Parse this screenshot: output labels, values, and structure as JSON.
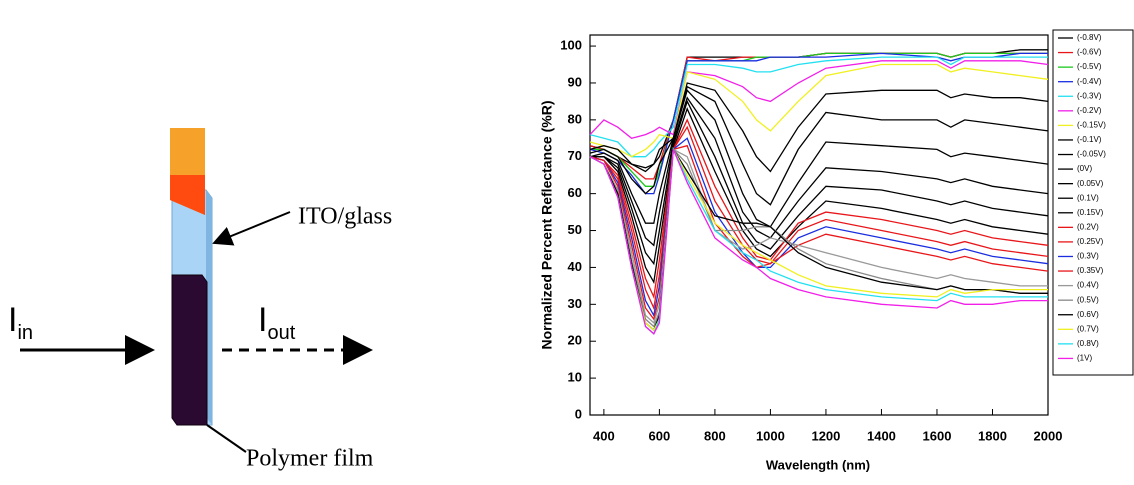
{
  "diagram": {
    "input": {
      "symbol": "I",
      "subscript": "in"
    },
    "output": {
      "symbol": "I",
      "subscript": "out"
    },
    "ito_label": "ITO/glass",
    "polymer_label": "Polymer film"
  },
  "chart_data": {
    "type": "line",
    "xlabel": "Wavelength (nm)",
    "ylabel": "Normalized Percent Reflectance (%R)",
    "xlim": [
      350,
      2000
    ],
    "ylim": [
      0,
      103
    ],
    "xticks": [
      400,
      600,
      800,
      1000,
      1200,
      1400,
      1600,
      1800,
      2000
    ],
    "yticks": [
      0,
      10,
      20,
      30,
      40,
      50,
      60,
      70,
      80,
      90,
      100
    ],
    "legend": "outside-right",
    "x": [
      350,
      400,
      450,
      500,
      550,
      580,
      600,
      650,
      700,
      800,
      900,
      950,
      1000,
      1100,
      1200,
      1400,
      1600,
      1650,
      1700,
      1800,
      1900,
      2000
    ],
    "series": [
      {
        "name": "(-0.8V)",
        "color": "#000000",
        "values": [
          73,
          72,
          70,
          68,
          67,
          68,
          70,
          80,
          97,
          97,
          97,
          97,
          97,
          97,
          98,
          98,
          98,
          97,
          98,
          98,
          99,
          99
        ]
      },
      {
        "name": "(-0.6V)",
        "color": "#e8161a",
        "values": [
          73,
          72,
          70,
          67,
          64,
          64,
          68,
          80,
          97,
          96,
          97,
          97,
          97,
          97,
          98,
          98,
          98,
          97,
          98,
          98,
          98,
          98
        ]
      },
      {
        "name": "(-0.5V)",
        "color": "#1ec81e",
        "values": [
          72,
          72,
          70,
          66,
          62,
          62,
          66,
          80,
          96,
          96,
          96,
          97,
          97,
          97,
          98,
          98,
          98,
          97,
          98,
          98,
          98,
          98
        ]
      },
      {
        "name": "(-0.4V)",
        "color": "#1a2ee0",
        "values": [
          72,
          71,
          69,
          65,
          60,
          60,
          65,
          80,
          96,
          96,
          96,
          96,
          97,
          97,
          97,
          98,
          97,
          96,
          97,
          97,
          98,
          98
        ]
      },
      {
        "name": "(-0.3V)",
        "color": "#22e0f0",
        "values": [
          76,
          75,
          74,
          70,
          70,
          72,
          74,
          78,
          95,
          95,
          94,
          93,
          93,
          95,
          96,
          97,
          97,
          95,
          97,
          97,
          97,
          97
        ]
      },
      {
        "name": "(-0.2V)",
        "color": "#f020e8",
        "values": [
          76,
          80,
          78,
          75,
          76,
          77,
          78,
          76,
          93,
          92,
          89,
          86,
          85,
          90,
          94,
          96,
          96,
          94,
          96,
          96,
          96,
          95
        ]
      },
      {
        "name": "(-0.15V)",
        "color": "#f0f020",
        "values": [
          74,
          73,
          72,
          70,
          72,
          74,
          76,
          75,
          93,
          91,
          85,
          80,
          77,
          85,
          92,
          95,
          95,
          93,
          94,
          93,
          92,
          91
        ]
      },
      {
        "name": "(-0.1V)",
        "color": "#000000",
        "values": [
          72,
          73,
          72,
          68,
          66,
          68,
          72,
          75,
          90,
          88,
          77,
          70,
          66,
          78,
          87,
          88,
          88,
          86,
          87,
          86,
          86,
          85
        ]
      },
      {
        "name": "(-0.05V)",
        "color": "#000000",
        "values": [
          71,
          72,
          70,
          64,
          60,
          62,
          68,
          75,
          89,
          85,
          68,
          60,
          57,
          72,
          82,
          80,
          80,
          78,
          80,
          79,
          78,
          77
        ]
      },
      {
        "name": "(0V)",
        "color": "#000000",
        "values": [
          70,
          71,
          69,
          60,
          52,
          52,
          60,
          75,
          88,
          80,
          60,
          53,
          51,
          63,
          74,
          73,
          72,
          70,
          71,
          70,
          69,
          68
        ]
      },
      {
        "name": "(0.05V)",
        "color": "#000000",
        "values": [
          70,
          70,
          68,
          58,
          48,
          46,
          55,
          74,
          86,
          75,
          55,
          50,
          48,
          58,
          67,
          66,
          64,
          63,
          64,
          62,
          61,
          60
        ]
      },
      {
        "name": "(0.1V)",
        "color": "#000000",
        "values": [
          70,
          70,
          67,
          56,
          44,
          41,
          50,
          73,
          85,
          70,
          52,
          47,
          45,
          54,
          62,
          61,
          58,
          57,
          58,
          56,
          55,
          54
        ]
      },
      {
        "name": "(0.15V)",
        "color": "#000000",
        "values": [
          70,
          70,
          66,
          54,
          40,
          36,
          46,
          72,
          83,
          66,
          50,
          45,
          43,
          51,
          58,
          56,
          53,
          52,
          53,
          51,
          50,
          49
        ]
      },
      {
        "name": "(0.2V)",
        "color": "#e8161a",
        "values": [
          70,
          69,
          65,
          52,
          37,
          32,
          42,
          72,
          80,
          62,
          48,
          43,
          42,
          52,
          55,
          53,
          50,
          49,
          50,
          48,
          47,
          46
        ]
      },
      {
        "name": "(0.25V)",
        "color": "#e8161a",
        "values": [
          70,
          69,
          64,
          50,
          34,
          29,
          38,
          72,
          78,
          58,
          46,
          42,
          41,
          50,
          53,
          50,
          47,
          46,
          47,
          45,
          44,
          43
        ]
      },
      {
        "name": "(0.3V)",
        "color": "#1a2ee0",
        "values": [
          70,
          69,
          63,
          48,
          31,
          27,
          35,
          72,
          75,
          55,
          44,
          40,
          40,
          48,
          51,
          48,
          45,
          44,
          45,
          43,
          42,
          41
        ]
      },
      {
        "name": "(0.35V)",
        "color": "#e8161a",
        "values": [
          70,
          69,
          62,
          46,
          29,
          26,
          32,
          72,
          73,
          52,
          43,
          40,
          41,
          46,
          49,
          46,
          43,
          42,
          43,
          41,
          40,
          39
        ]
      },
      {
        "name": "(0.4V)",
        "color": "#999999",
        "values": [
          70,
          68,
          61,
          44,
          27,
          25,
          30,
          72,
          70,
          50,
          45,
          46,
          48,
          46,
          44,
          40,
          37,
          38,
          37,
          36,
          35,
          35
        ]
      },
      {
        "name": "(0.5V)",
        "color": "#888888",
        "values": [
          70,
          68,
          60,
          42,
          26,
          24,
          28,
          72,
          68,
          50,
          50,
          51,
          51,
          45,
          41,
          37,
          34,
          35,
          34,
          34,
          33,
          33
        ]
      },
      {
        "name": "(0.6V)",
        "color": "#000000",
        "values": [
          70,
          68,
          60,
          41,
          25,
          23,
          27,
          72,
          66,
          54,
          52,
          52,
          51,
          44,
          40,
          36,
          34,
          35,
          34,
          34,
          33,
          33
        ]
      },
      {
        "name": "(0.7V)",
        "color": "#f0f020",
        "values": [
          70,
          68,
          59,
          40,
          25,
          23,
          26,
          72,
          65,
          52,
          46,
          44,
          42,
          38,
          35,
          33,
          32,
          34,
          33,
          34,
          34,
          34
        ]
      },
      {
        "name": "(0.8V)",
        "color": "#22e0f0",
        "values": [
          70,
          68,
          59,
          40,
          24,
          22,
          26,
          72,
          64,
          50,
          44,
          42,
          39,
          36,
          34,
          32,
          31,
          33,
          32,
          32,
          32,
          32
        ]
      },
      {
        "name": "(1V)",
        "color": "#f020e8",
        "values": [
          70,
          68,
          59,
          40,
          24,
          22,
          25,
          72,
          63,
          48,
          42,
          40,
          37,
          34,
          32,
          30,
          29,
          31,
          30,
          30,
          31,
          31
        ]
      }
    ]
  }
}
